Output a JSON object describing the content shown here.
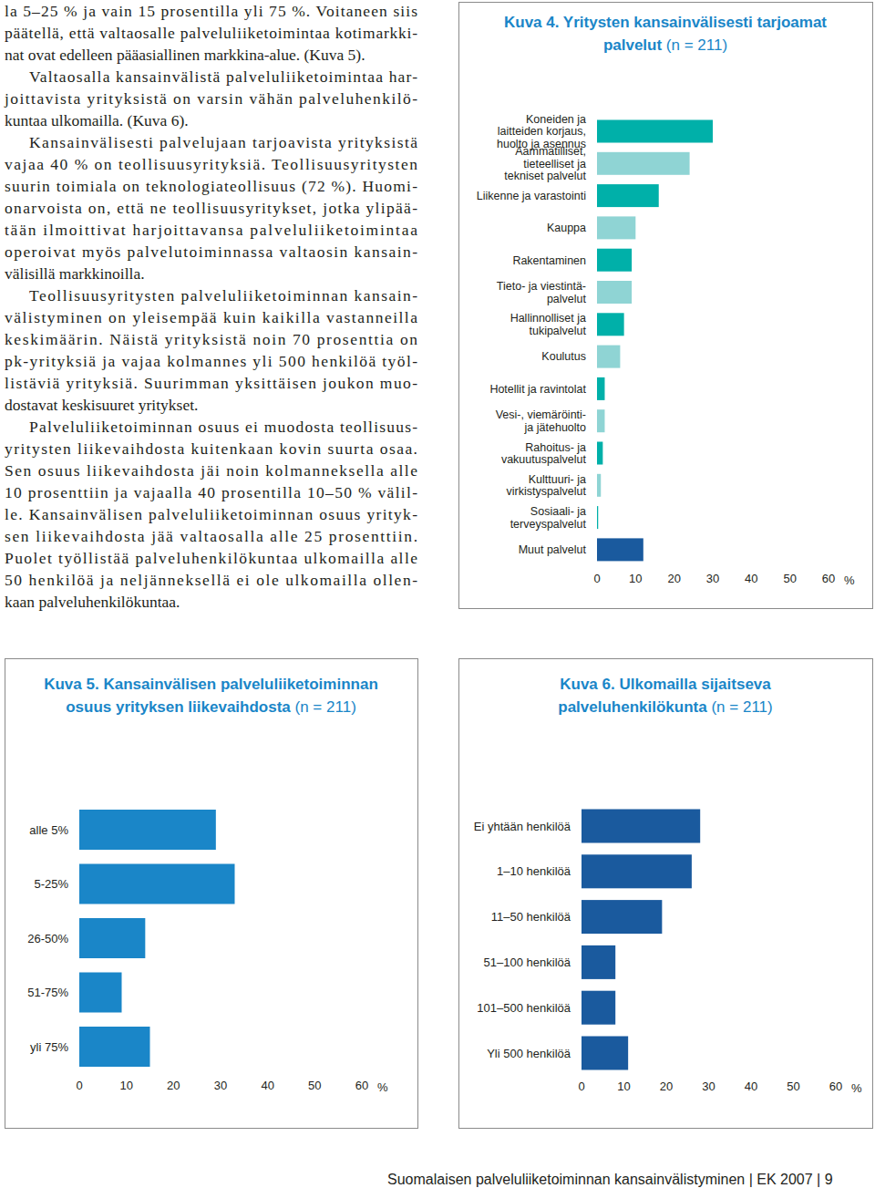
{
  "document": {
    "paragraphs": [
      {
        "lines": [
          "la 5–25 % ja vain 15 prosentilla yli 75 %. Voitaneen siis",
          "päätellä, että valtaosalle palveluliiketoimintaa kotimarkki-",
          "nat ovat edelleen pääasiallinen markkina-alue. (Kuva 5)."
        ]
      },
      {
        "lines": [
          "Valtaosalla kansainvälistä palveluliiketoimintaa har-",
          "joittavista yrityksistä on varsin vähän palveluhenkilö-",
          "kuntaa ulkomailla. (Kuva 6)."
        ]
      },
      {
        "lines": [
          "Kansainvälisesti palvelujaan tarjoavista yrityksistä",
          "vajaa 40 % on teollisuusyrityksiä. Teollisuusyritysten",
          "suurin toimiala on teknologiateollisuus (72 %). Huomi-",
          "onarvoista on, että ne teollisuusyritykset, jotka ylipää-",
          "tään ilmoittivat harjoittavansa palveluliiketoimintaa",
          "operoivat myös palvelutoiminnassa valtaosin kansain-",
          "välisillä markkinoilla."
        ]
      },
      {
        "lines": [
          "Teollisuusyritysten palveluliiketoiminnan kansain-",
          "välistyminen on yleisempää kuin kaikilla vastanneilla",
          "keskimäärin. Näistä yrityksistä noin 70 prosenttia on",
          "pk-yrityksiä ja vajaa kolmannes yli 500 henkilöä työl-",
          "listäviä yrityksiä. Suurimman yksittäisen joukon muo-",
          "dostavat keskisuuret yritykset."
        ]
      },
      {
        "lines": [
          "Palveluliiketoiminnan osuus ei muodosta teollisuus-",
          "yritysten liikevaihdosta kuitenkaan kovin suurta osaa.",
          "Sen osuus liikevaihdosta jäi noin kolmanneksella alle",
          "10 prosenttiin ja vajaalla 40 prosentilla 10–50 % välil-",
          "le. Kansainvälisen palveluliiketoiminnan osuus yrityk-",
          "sen liikevaihdosta jää valtaosalla alle 25 prosenttiin.",
          "Puolet työllistää palveluhenkilökuntaa ulkomailla alle",
          "50 henkilöä ja neljänneksellä ei ole ulkomailla ollen-",
          "kaan palveluhenkilökuntaa."
        ]
      }
    ],
    "footer": {
      "title": "Suomalaisen palveluliiketoiminnan kansainvälistyminen",
      "separator": "|",
      "publisher": "EK 2007",
      "page": "9"
    }
  },
  "chart_data": [
    {
      "type": "bar",
      "orientation": "horizontal",
      "title": "Kuva 4. Yritysten kansainvälisesti tarjoamat\npalvelut",
      "subtitle": "(n = 211)",
      "categories": [
        "Koneiden ja\nlaitteiden korjaus,\nhuolto ja asennus",
        "Aammatilliset,\ntieteelliset ja\ntekniset palvelut",
        "Liikenne ja varastointi",
        "Kauppa",
        "Rakentaminen",
        "Tieto- ja viestintä-\npalvelut",
        "Hallinnolliset ja\ntukipalvelut",
        "Koulutus",
        "Hotellit ja ravintolat",
        "Vesi-, viemäröinti-\nja jätehuolto",
        "Rahoitus- ja\nvakuutuspalvelut",
        "Kulttuuri- ja\nvirkistyspalvelut",
        "Sosiaali- ja\nterveyspalvelut",
        "Muut palvelut"
      ],
      "values": [
        30,
        24,
        16,
        10,
        9,
        9,
        7,
        6,
        2,
        2,
        1.5,
        1,
        0.3,
        12
      ],
      "colors": [
        "#00b0a9",
        "#8fd4d4",
        "#00b0a9",
        "#8fd4d4",
        "#00b0a9",
        "#8fd4d4",
        "#00b0a9",
        "#8fd4d4",
        "#00b0a9",
        "#8fd4d4",
        "#00b0a9",
        "#8fd4d4",
        "#00b0a9",
        "#1a5a9e"
      ],
      "xlim": [
        0,
        60
      ],
      "xticks": [
        0,
        10,
        20,
        30,
        40,
        50,
        60
      ],
      "xlabel": "%",
      "grid": false
    },
    {
      "type": "bar",
      "orientation": "horizontal",
      "title": "Kuva 5. Kansainvälisen palveluliiketoiminnan\nosuus yrityksen liikevaihdosta",
      "subtitle": "(n = 211)",
      "categories": [
        "alle 5%",
        "5-25%",
        "26-50%",
        "51-75%",
        "yli 75%"
      ],
      "values": [
        29,
        33,
        14,
        9,
        15
      ],
      "color": "#1a86c8",
      "xlim": [
        0,
        60
      ],
      "xticks": [
        0,
        10,
        20,
        30,
        40,
        50,
        60
      ],
      "xlabel": "%",
      "grid": false
    },
    {
      "type": "bar",
      "orientation": "horizontal",
      "title": "Kuva 6. Ulkomailla sijaitseva\npalveluhenkilökunta",
      "subtitle": "(n = 211)",
      "categories": [
        "Ei yhtään henkilöä",
        "1–10 henkilöä",
        "11–50 henkilöä",
        "51–100 henkilöä",
        "101–500 henkilöä",
        "Yli 500 henkilöä"
      ],
      "values": [
        28,
        26,
        19,
        8,
        8,
        11
      ],
      "color": "#1a5a9e",
      "xlim": [
        0,
        60
      ],
      "xticks": [
        0,
        10,
        20,
        30,
        40,
        50,
        60
      ],
      "xlabel": "%",
      "grid": false
    }
  ]
}
